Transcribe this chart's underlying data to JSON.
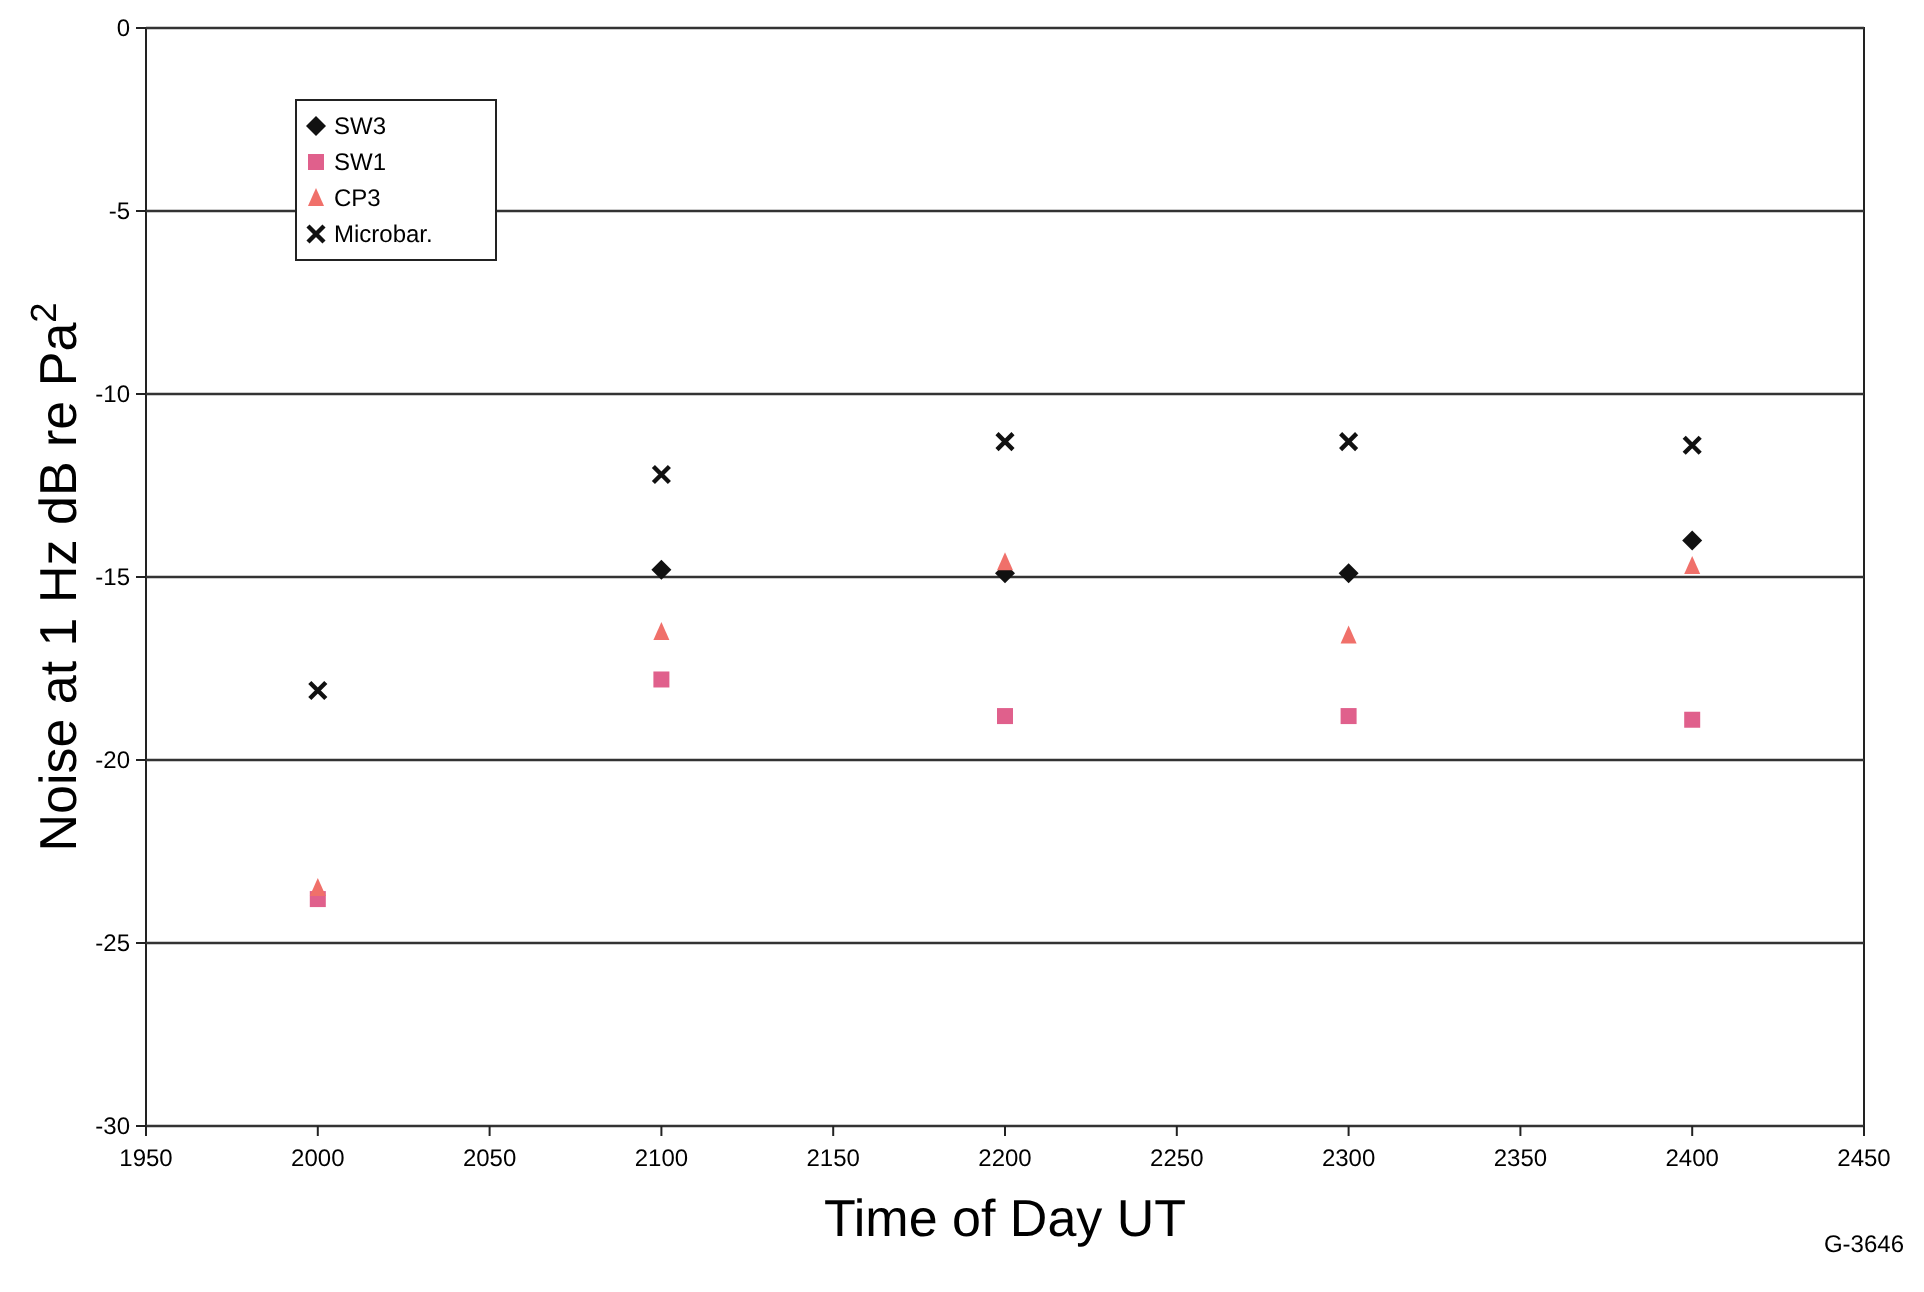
{
  "chart_data": {
    "type": "scatter",
    "xlabel": "Time of Day UT",
    "ylabel": "Noise at 1 Hz dB re Pa$^{2}$",
    "annotations": [
      "G-3646"
    ],
    "x": [
      2000,
      2100,
      2200,
      2300,
      2400
    ],
    "series": [
      {
        "name": "SW3",
        "color": "#111111",
        "marker": "diamond",
        "values": [
          null,
          -14.8,
          -14.9,
          -14.9,
          -14.0
        ]
      },
      {
        "name": "SW1",
        "color": "#e0608c",
        "marker": "square",
        "values": [
          -23.8,
          -17.8,
          -18.8,
          -18.8,
          -18.9
        ]
      },
      {
        "name": "CP3",
        "color": "#f0706a",
        "marker": "triangle",
        "values": [
          -23.5,
          -16.5,
          -14.6,
          -16.6,
          -14.7
        ]
      },
      {
        "name": "Microbar.",
        "color": "#111111",
        "marker": "cross",
        "values": [
          -18.1,
          -12.2,
          -11.3,
          -11.3,
          -11.4
        ]
      }
    ],
    "xlim": [
      1950,
      2450
    ],
    "xticks": [
      1950,
      2000,
      2050,
      2100,
      2150,
      2200,
      2250,
      2300,
      2350,
      2400,
      2450
    ],
    "ylim": [
      -30,
      0
    ],
    "yticks": [
      -30,
      -25,
      -20,
      -15,
      -10,
      -5,
      0
    ],
    "grid": "y",
    "legend": "top left"
  }
}
